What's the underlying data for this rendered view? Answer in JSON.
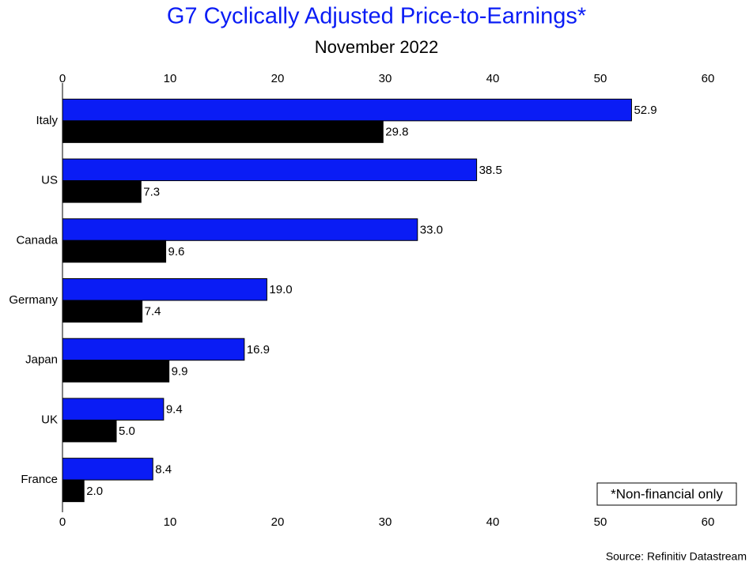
{
  "chart_data": {
    "type": "hbar",
    "title": "G7 Cyclically Adjusted Price-to-Earnings*",
    "subtitle": "November 2022",
    "categories": [
      "Italy",
      "US",
      "Canada",
      "Germany",
      "Japan",
      "UK",
      "France"
    ],
    "series": [
      {
        "color": "#0a1cf5",
        "values": [
          52.9,
          38.5,
          33.0,
          19.0,
          16.9,
          9.4,
          8.4
        ],
        "value_labels": [
          "52.9",
          "38.5",
          "33.0",
          "19.0",
          "16.9",
          "9.4",
          "8.4"
        ]
      },
      {
        "color": "#000000",
        "values": [
          29.8,
          7.3,
          9.6,
          7.4,
          9.9,
          5.0,
          2.0
        ],
        "value_labels": [
          "29.8",
          "7.3",
          "9.6",
          "7.4",
          "9.9",
          "5.0",
          "2.0"
        ]
      }
    ],
    "xlim": [
      0,
      60
    ],
    "xticks": [
      0,
      10,
      20,
      30,
      40,
      50,
      60
    ],
    "annotation": "*Non-financial only",
    "source": "Source: Refinitiv Datastream"
  }
}
